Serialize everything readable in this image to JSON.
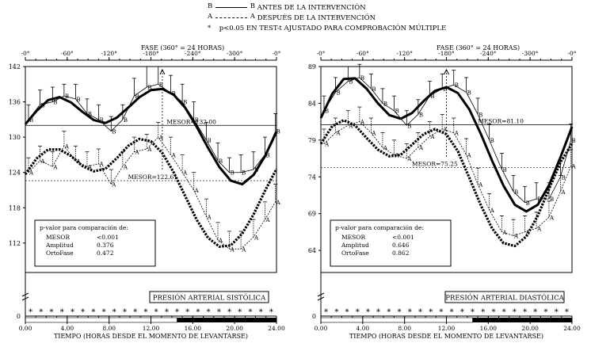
{
  "legend": {
    "rows": [
      {
        "key": "B",
        "line": "solid",
        "text": "ANTES DE LA INTERVENCIÓN"
      },
      {
        "key": "A",
        "line": "dashed",
        "text": "DESPUÉS DE LA INTERVENCIÓN"
      },
      {
        "key": "*",
        "line": "none",
        "text": "p<0.05  EN TEST-t AJUSTADO PARA COMPROBACIÓN MÚLTIPLE"
      }
    ]
  },
  "chart_data": [
    {
      "type": "line",
      "top_axis_label": "FASE (360° = 24 HORAS)",
      "top_ticks": [
        "-0°",
        "-60°",
        "-120°",
        "-180°",
        "-240°",
        "-300°",
        "-0°"
      ],
      "xlabel": "TIEMPO (HORAS DESDE EL MOMENTO DE LEVANTARSE)",
      "x_ticks": [
        "0.00",
        "4.00",
        "8.00",
        "12.00",
        "16.00",
        "20.00",
        "24.00"
      ],
      "xlim": [
        0,
        24
      ],
      "ylim": [
        107,
        142
      ],
      "y_ticks": [
        142,
        136,
        130,
        124,
        118,
        112
      ],
      "y_zero_label": "0",
      "title": "PRESIÓN ARTERIAL SISTÓLICA",
      "mesor_labels": [
        {
          "text": "MESOR=132.00",
          "x": 13.5,
          "y": 132.0
        },
        {
          "text": "MESOR=122.61",
          "x": 9.8,
          "y": 122.61
        }
      ],
      "night_bar_start": 14.5,
      "stars": [
        0.5,
        1.5,
        2.5,
        3.5,
        4.5,
        5.5,
        6.5,
        7.5,
        8.5,
        9.5,
        10.5,
        11.5,
        12.5,
        13.5,
        14.5,
        15.5,
        16.5,
        17.5,
        18.5,
        19.5,
        20.5,
        21.5,
        22.5,
        23.5
      ],
      "series": [
        {
          "name": "B",
          "color": "#000000",
          "mesor": 132.0,
          "fit": [
            132.2,
            134.5,
            136.3,
            136.8,
            135.9,
            134.3,
            132.9,
            132.4,
            133.3,
            135.0,
            136.8,
            138.0,
            138.2,
            137.2,
            135.0,
            131.8,
            128.2,
            124.9,
            122.6,
            122.0,
            123.6,
            126.8,
            130.9
          ],
          "x": [
            0.3,
            1.4,
            2.6,
            3.7,
            4.8,
            5.9,
            7.0,
            8.2,
            9.3,
            10.4,
            11.6,
            12.7,
            13.9,
            15.0,
            16.1,
            17.3,
            18.4,
            19.5,
            20.6,
            21.8,
            22.9,
            23.9
          ],
          "y": [
            133.0,
            135.5,
            136.0,
            137.0,
            136.5,
            134.0,
            133.0,
            131.0,
            133.0,
            137.0,
            138.5,
            139.0,
            137.5,
            136.0,
            133.0,
            129.5,
            126.0,
            124.0,
            124.0,
            124.5,
            127.0,
            131.0
          ],
          "err": [
            2.5,
            2.5,
            2.5,
            2.0,
            2.5,
            2.5,
            2.5,
            2.5,
            2.5,
            3.0,
            3.5,
            3.0,
            3.0,
            3.0,
            3.0,
            3.0,
            3.0,
            2.5,
            3.0,
            3.0,
            3.0,
            3.0
          ]
        },
        {
          "name": "A",
          "color": "#000000",
          "mesor": 122.61,
          "fit": [
            123.7,
            126.4,
            127.9,
            127.9,
            126.8,
            125.1,
            124.2,
            124.6,
            126.4,
            128.5,
            129.7,
            129.3,
            127.3,
            124.0,
            120.0,
            116.0,
            112.9,
            111.4,
            111.6,
            113.6,
            116.9,
            120.9,
            124.6
          ],
          "x": [
            0.3,
            1.4,
            2.6,
            3.7,
            4.8,
            5.9,
            7.0,
            8.2,
            9.3,
            10.4,
            11.6,
            12.7,
            13.9,
            15.0,
            16.1,
            17.3,
            18.4,
            19.5,
            20.6,
            21.8,
            22.9,
            23.9
          ],
          "y": [
            124.0,
            126.0,
            125.0,
            128.5,
            126.0,
            125.0,
            125.5,
            122.0,
            125.0,
            127.5,
            128.0,
            130.0,
            127.0,
            124.0,
            121.0,
            116.5,
            112.5,
            111.0,
            111.0,
            113.0,
            116.0,
            119.0
          ],
          "err": [
            2.5,
            2.5,
            2.5,
            2.5,
            2.5,
            2.5,
            2.5,
            2.5,
            2.5,
            2.5,
            2.5,
            2.5,
            3.0,
            3.0,
            3.0,
            3.0,
            3.0,
            3.0,
            3.0,
            3.0,
            3.0,
            3.0
          ]
        }
      ],
      "stats": {
        "header": "p-valor  para  comparación  de:",
        "rows": [
          {
            "label": "MESOR",
            "value": "<0.001"
          },
          {
            "label": "Amplitud",
            "value": "0.376"
          },
          {
            "label": "OrtoFase",
            "value": "0.472"
          }
        ]
      }
    },
    {
      "type": "line",
      "top_axis_label": "FASE (360° = 24 HORAS)",
      "top_ticks": [
        "-0°",
        "-60°",
        "-120°",
        "-180°",
        "-240°",
        "-300°",
        "-0°"
      ],
      "xlabel": "TIEMPO (HORAS DESDE EL MOMENTO DE LEVANTARSE)",
      "x_ticks": [
        "0.00",
        "4.00",
        "8.00",
        "12.00",
        "16.00",
        "20.00",
        "24.00"
      ],
      "xlim": [
        0,
        24
      ],
      "ylim": [
        61,
        89
      ],
      "y_ticks": [
        89,
        84,
        79,
        74,
        69,
        64
      ],
      "y_zero_label": "0",
      "title": "PRESIÓN ARTERIAL DIASTÓLICA",
      "mesor_labels": [
        {
          "text": "MESOR=81.10",
          "x": 15.0,
          "y": 81.1
        },
        {
          "text": "MESOR=75.25",
          "x": 8.7,
          "y": 75.25
        }
      ],
      "night_bar_start": 14.5,
      "stars": [
        0.5,
        1.5,
        2.5,
        3.5,
        4.5,
        5.5,
        6.5,
        7.5,
        8.5,
        9.5,
        10.5,
        11.5,
        12.5,
        13.5,
        14.5,
        15.5,
        16.5,
        17.5,
        18.5,
        19.5,
        20.5,
        21.5,
        22.5,
        23.5
      ],
      "series": [
        {
          "name": "B",
          "color": "#000000",
          "mesor": 81.1,
          "fit": [
            82.0,
            85.3,
            87.3,
            87.4,
            86.0,
            84.0,
            82.4,
            81.9,
            82.7,
            84.3,
            85.7,
            86.2,
            85.4,
            83.2,
            79.9,
            76.2,
            72.8,
            70.2,
            69.3,
            70.2,
            72.9,
            76.7,
            80.8
          ],
          "x": [
            0.3,
            1.4,
            2.6,
            3.7,
            4.8,
            5.9,
            7.0,
            8.2,
            9.3,
            10.4,
            11.6,
            12.7,
            13.9,
            15.0,
            16.1,
            17.3,
            18.4,
            19.5,
            20.6,
            21.8,
            22.9,
            23.9
          ],
          "y": [
            83.0,
            85.5,
            87.0,
            87.5,
            86.0,
            84.0,
            83.0,
            81.0,
            82.5,
            85.0,
            86.0,
            86.5,
            85.5,
            82.5,
            79.0,
            75.0,
            72.0,
            70.5,
            71.0,
            71.0,
            74.0,
            79.0
          ],
          "err": [
            2.0,
            2.0,
            2.0,
            1.8,
            2.0,
            2.0,
            2.0,
            2.0,
            2.0,
            2.0,
            2.0,
            2.0,
            2.0,
            2.2,
            2.2,
            2.2,
            2.2,
            2.2,
            2.2,
            2.2,
            2.2,
            2.2
          ]
        },
        {
          "name": "A",
          "color": "#000000",
          "mesor": 75.25,
          "fit": [
            78.5,
            80.9,
            81.7,
            81.0,
            79.3,
            77.7,
            76.8,
            77.0,
            78.4,
            79.8,
            80.5,
            79.8,
            77.5,
            73.9,
            70.2,
            67.0,
            65.0,
            64.6,
            65.9,
            68.7,
            72.4,
            76.0,
            78.5
          ],
          "x": [
            0.3,
            1.4,
            2.6,
            3.7,
            4.8,
            5.9,
            7.0,
            8.2,
            9.3,
            10.4,
            11.6,
            12.7,
            13.9,
            15.0,
            16.1,
            17.3,
            18.4,
            19.5,
            20.6,
            21.8,
            22.9,
            23.9
          ],
          "y": [
            78.5,
            80.0,
            81.0,
            81.5,
            80.0,
            78.0,
            77.0,
            76.5,
            78.0,
            79.5,
            80.5,
            80.0,
            77.0,
            73.0,
            69.5,
            66.5,
            66.0,
            66.5,
            67.0,
            68.5,
            72.0,
            75.5
          ],
          "err": [
            2.0,
            2.0,
            2.0,
            2.0,
            2.0,
            2.0,
            2.0,
            2.0,
            2.0,
            2.0,
            2.0,
            2.0,
            2.2,
            2.2,
            2.2,
            2.2,
            2.2,
            2.2,
            2.2,
            2.2,
            2.2,
            2.2
          ]
        }
      ],
      "stats": {
        "header": "p-valor  para  comparación  de:",
        "rows": [
          {
            "label": "MESOR",
            "value": "<0.001"
          },
          {
            "label": "Amplitud",
            "value": "0.646"
          },
          {
            "label": "OrtoFase",
            "value": "0.862"
          }
        ]
      }
    }
  ]
}
